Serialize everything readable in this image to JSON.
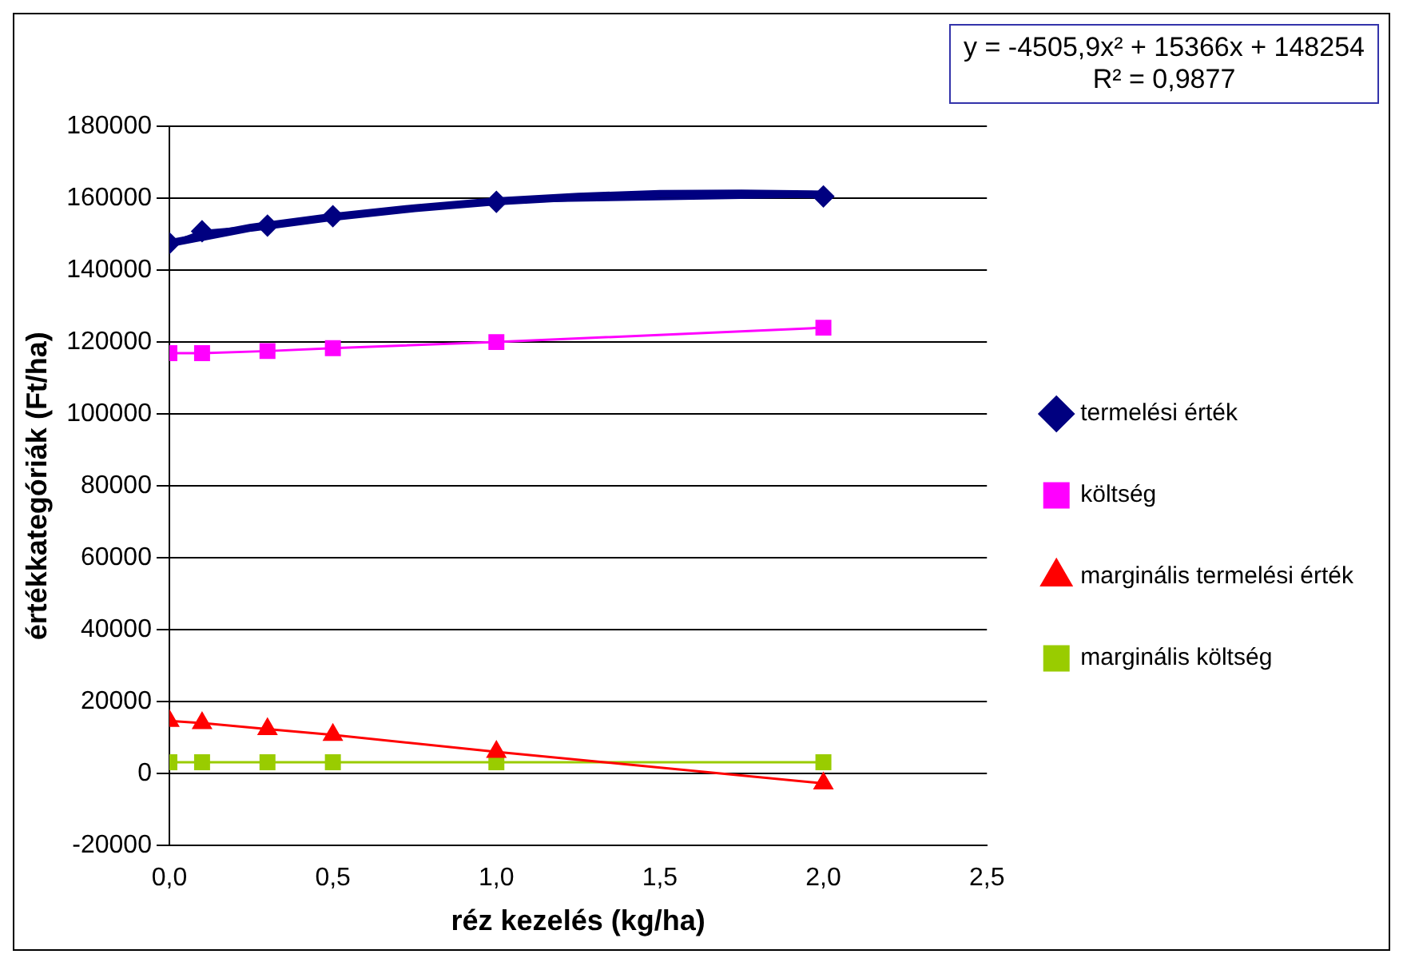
{
  "chart_data": {
    "type": "line",
    "xlabel": "réz kezelés (kg/ha)",
    "ylabel": "értékkategóriák (Ft/ha)",
    "x": [
      0,
      0.1,
      0.3,
      0.5,
      1,
      2
    ],
    "series": [
      {
        "name": "termelési érték",
        "color": "#000080",
        "marker": "diamond",
        "values": [
          147500,
          150800,
          152400,
          155000,
          159000,
          160500
        ]
      },
      {
        "name": "költség",
        "color": "#ff00ff",
        "marker": "square",
        "values": [
          116900,
          116900,
          117500,
          118300,
          120000,
          124000
        ]
      },
      {
        "name": "marginális termelési érték",
        "color": "#ff0000",
        "marker": "triangle",
        "values": [
          14700,
          14100,
          12400,
          10800,
          6100,
          -2700
        ]
      },
      {
        "name": "marginális költség",
        "color": "#99cc00",
        "marker": "square",
        "values": [
          3200,
          3200,
          3200,
          3200,
          3200,
          3200
        ]
      },
      {
        "type": "line",
        "color": "#000080",
        "marker": "none",
        "x": [
          0,
          0.25,
          0.5,
          0.75,
          1,
          1.25,
          1.5,
          1.75,
          2
        ],
        "values": [
          147500,
          151800,
          154800,
          157200,
          159100,
          160400,
          161200,
          161300,
          161000
        ]
      }
    ],
    "xlim": [
      0,
      2.5
    ],
    "xticks": [
      {
        "value": 0,
        "label": "0,0"
      },
      {
        "value": 0.5,
        "label": "0,5"
      },
      {
        "value": 1,
        "label": "1,0"
      },
      {
        "value": 1.5,
        "label": "1,5"
      },
      {
        "value": 2,
        "label": "2,0"
      },
      {
        "value": 2.5,
        "label": "2,5"
      }
    ],
    "ylim": [
      -20000,
      180000
    ],
    "yticks": [
      -20000,
      0,
      20000,
      40000,
      60000,
      80000,
      100000,
      120000,
      140000,
      160000,
      180000
    ],
    "grid": "y",
    "legend": "right",
    "annotations": [
      "y = -4505,9x² + 15366x + 148254\nR² = 0,9877"
    ]
  }
}
